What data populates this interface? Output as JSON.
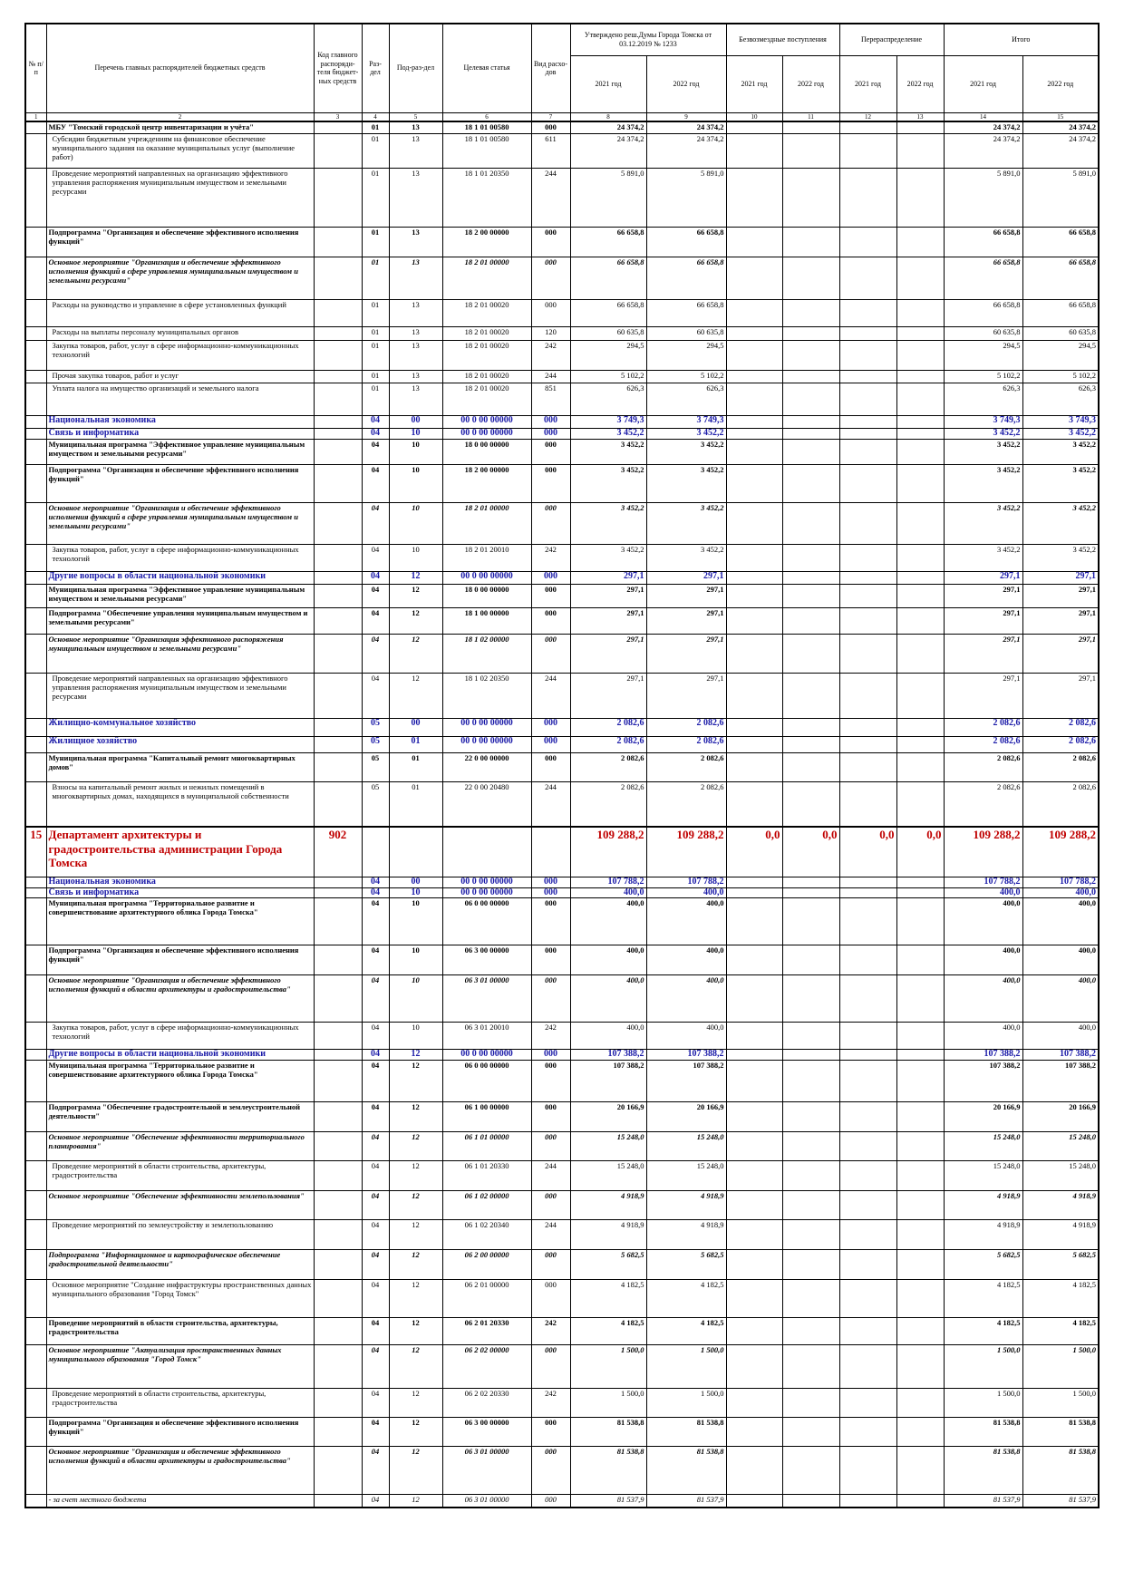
{
  "table": {
    "head": {
      "columns": [
        "№ п/п",
        "Перечень главных распорядителей бюджетных средств",
        "Код главного распоряди-теля бюджет-ных средств",
        "Раз-дел",
        "Под-раз-дел",
        "Целевая статья",
        "Вид расхо-дов"
      ],
      "groups": [
        "Утверждено реш.Думы Города Томска от 03.12.2019 № 1233",
        "Безвозмездные поступления",
        "Перераспределение",
        "Итого"
      ],
      "years": [
        "2021 год",
        "2022 год",
        "2021 год",
        "2022 год",
        "2021 год",
        "2022 год",
        "2021 год",
        "2022 год"
      ]
    },
    "numbers": [
      1,
      2,
      3,
      4,
      5,
      6,
      7,
      8,
      9,
      10,
      11,
      12,
      13,
      14,
      15
    ],
    "rows": [
      [
        null,
        "МБУ \"Томский городской центр инвентаризации и учёта\"",
        null,
        "01",
        "13",
        "18 1 01 00580",
        "000",
        "24 374,2",
        "24 374,2",
        null,
        null,
        null,
        null,
        "24 374,2",
        "24 374,2"
      ],
      [
        null,
        "Субсидии бюджетным учреждениям на финансовое обеспечение муниципального задания на оказание муниципальных услуг (выполнение работ)",
        null,
        "01",
        "13",
        "18 1 01 00580",
        "611",
        "24 374,2",
        "24 374,2",
        null,
        null,
        null,
        null,
        "24 374,2",
        "24 374,2"
      ],
      [
        null,
        "Проведение мероприятий направленных на организацию эффективного управления распоряжения муниципальным имуществом и земельными ресурсами",
        null,
        "01",
        "13",
        "18 1 01 20350",
        "244",
        "5 891,0",
        "5 891,0",
        null,
        null,
        null,
        null,
        "5 891,0",
        "5 891,0"
      ],
      [
        null,
        "Подпрограмма \"Организация и обеспечение эффективного исполнения функций\"",
        null,
        "01",
        "13",
        "18 2 00 00000",
        "000",
        "66 658,8",
        "66 658,8",
        null,
        null,
        null,
        null,
        "66 658,8",
        "66 658,8"
      ],
      [
        null,
        "Основное мероприятие \"Организация и обеспечение эффективного исполнения функций в сфере управления муниципальным имуществом и земельными ресурсами\"",
        null,
        "01",
        "13",
        "18 2 01 00000",
        "000",
        "66 658,8",
        "66 658,8",
        null,
        null,
        null,
        null,
        "66 658,8",
        "66 658,8"
      ],
      [
        null,
        "Расходы на руководство и управление в сфере установленных функций",
        null,
        "01",
        "13",
        "18 2 01 00020",
        "000",
        "66 658,8",
        "66 658,8",
        null,
        null,
        null,
        null,
        "66 658,8",
        "66 658,8"
      ],
      [
        null,
        "Расходы на выплаты персоналу муниципальных органов",
        null,
        "01",
        "13",
        "18 2 01 00020",
        "120",
        "60 635,8",
        "60 635,8",
        null,
        null,
        null,
        null,
        "60 635,8",
        "60 635,8"
      ],
      [
        null,
        "Закупка товаров, работ, услуг в сфере информационно-коммуникационных технологий",
        null,
        "01",
        "13",
        "18 2 01 00020",
        "242",
        "294,5",
        "294,5",
        null,
        null,
        null,
        null,
        "294,5",
        "294,5"
      ],
      [
        null,
        "Прочая закупка товаров, работ и услуг",
        null,
        "01",
        "13",
        "18 2 01 00020",
        "244",
        "5 102,2",
        "5 102,2",
        null,
        null,
        null,
        null,
        "5 102,2",
        "5 102,2"
      ],
      [
        null,
        "Уплата налога на имущество организаций и земельного налога",
        null,
        "01",
        "13",
        "18 2 01 00020",
        "851",
        "626,3",
        "626,3",
        null,
        null,
        null,
        null,
        "626,3",
        "626,3"
      ],
      [
        null,
        "Национальная экономика",
        null,
        "04",
        "00",
        "00 0 00 00000",
        "000",
        "3 749,3",
        "3 749,3",
        null,
        null,
        null,
        null,
        "3 749,3",
        "3 749,3"
      ],
      [
        null,
        "Связь и информатика",
        null,
        "04",
        "10",
        "00 0 00 00000",
        "000",
        "3 452,2",
        "3 452,2",
        null,
        null,
        null,
        null,
        "3 452,2",
        "3 452,2"
      ],
      [
        null,
        "Муниципальная программа \"Эффективное управление муниципальным имуществом и земельными ресурсами\"",
        null,
        "04",
        "10",
        "18 0 00 00000",
        "000",
        "3 452,2",
        "3 452,2",
        null,
        null,
        null,
        null,
        "3 452,2",
        "3 452,2"
      ],
      [
        null,
        "Подпрограмма \"Организация и обеспечение эффективного исполнения функций\"",
        null,
        "04",
        "10",
        "18 2 00 00000",
        "000",
        "3 452,2",
        "3 452,2",
        null,
        null,
        null,
        null,
        "3 452,2",
        "3 452,2"
      ],
      [
        null,
        "Основное мероприятие \"Организация и обеспечение эффективного исполнения функций в сфере управления муниципальным имуществом и земельными ресурсами\"",
        null,
        "04",
        "10",
        "18 2 01 00000",
        "000",
        "3 452,2",
        "3 452,2",
        null,
        null,
        null,
        null,
        "3 452,2",
        "3 452,2"
      ],
      [
        null,
        "Закупка товаров, работ, услуг в сфере информационно-коммуникационных технологий",
        null,
        "04",
        "10",
        "18 2 01 20010",
        "242",
        "3 452,2",
        "3 452,2",
        null,
        null,
        null,
        null,
        "3 452,2",
        "3 452,2"
      ],
      [
        null,
        "Другие вопросы в области национальной экономики",
        null,
        "04",
        "12",
        "00 0 00 00000",
        "000",
        "297,1",
        "297,1",
        null,
        null,
        null,
        null,
        "297,1",
        "297,1"
      ],
      [
        null,
        "Муниципальная программа \"Эффективное управление муниципальным имуществом и земельными ресурсами\"",
        null,
        "04",
        "12",
        "18 0 00 00000",
        "000",
        "297,1",
        "297,1",
        null,
        null,
        null,
        null,
        "297,1",
        "297,1"
      ],
      [
        null,
        "Подпрограмма \"Обеспечение управления муниципальным имуществом и земельными ресурсами\"",
        null,
        "04",
        "12",
        "18 1 00 00000",
        "000",
        "297,1",
        "297,1",
        null,
        null,
        null,
        null,
        "297,1",
        "297,1"
      ],
      [
        null,
        "Основное мероприятие \"Организация эффективного распоряжения муниципальным имуществом и земельными ресурсами\"",
        null,
        "04",
        "12",
        "18 1 02 00000",
        "000",
        "297,1",
        "297,1",
        null,
        null,
        null,
        null,
        "297,1",
        "297,1"
      ],
      [
        null,
        "Проведение мероприятий направленных на организацию эффективного управления распоряжения муниципальным имуществом и земельными ресурсами",
        null,
        "04",
        "12",
        "18 1 02 20350",
        "244",
        "297,1",
        "297,1",
        null,
        null,
        null,
        null,
        "297,1",
        "297,1"
      ],
      [
        null,
        "Жилищно-коммунальное хозяйство",
        null,
        "05",
        "00",
        "00 0 00 00000",
        "000",
        "2 082,6",
        "2 082,6",
        null,
        null,
        null,
        null,
        "2 082,6",
        "2 082,6"
      ],
      [
        null,
        "Жилищное хозяйство",
        null,
        "05",
        "01",
        "00 0 00 00000",
        "000",
        "2 082,6",
        "2 082,6",
        null,
        null,
        null,
        null,
        "2 082,6",
        "2 082,6"
      ],
      [
        null,
        "Муниципальная программа \"Капитальный ремонт многоквартирных домов\"",
        null,
        "05",
        "01",
        "22 0 00 00000",
        "000",
        "2 082,6",
        "2 082,6",
        null,
        null,
        null,
        null,
        "2 082,6",
        "2 082,6"
      ],
      [
        null,
        "Взносы на капитальный ремонт жилых и нежилых помещений в многоквартирных домах, находящихся в муниципальной собственности",
        null,
        "05",
        "01",
        "22 0 00 20480",
        "244",
        "2 082,6",
        "2 082,6",
        null,
        null,
        null,
        null,
        "2 082,6",
        "2 082,6"
      ],
      [
        "15",
        "Департамент архитектуры и градостроительства администрации Города Томска",
        "902",
        null,
        null,
        null,
        null,
        "109 288,2",
        "109 288,2",
        "0,0",
        "0,0",
        "0,0",
        "0,0",
        "109 288,2",
        "109 288,2"
      ],
      [
        null,
        "Национальная экономика",
        null,
        "04",
        "00",
        "00 0 00 00000",
        "000",
        "107 788,2",
        "107 788,2",
        null,
        null,
        null,
        null,
        "107 788,2",
        "107 788,2"
      ],
      [
        null,
        "Связь и информатика",
        null,
        "04",
        "10",
        "00 0 00 00000",
        "000",
        "400,0",
        "400,0",
        null,
        null,
        null,
        null,
        "400,0",
        "400,0"
      ],
      [
        null,
        "Муниципальная программа \"Территориальное развитие и совершенствование архитектурного облика Города Томска\"",
        null,
        "04",
        "10",
        "06 0 00 00000",
        "000",
        "400,0",
        "400,0",
        null,
        null,
        null,
        null,
        "400,0",
        "400,0"
      ],
      [
        null,
        "Подпрограмма \"Организация и обеспечение эффективного исполнения функций\"",
        null,
        "04",
        "10",
        "06 3 00 00000",
        "000",
        "400,0",
        "400,0",
        null,
        null,
        null,
        null,
        "400,0",
        "400,0"
      ],
      [
        null,
        "Основное мероприятие \"Организация и обеспечение эффективного исполнения функций в области архитектуры и градостроительства\"",
        null,
        "04",
        "10",
        "06 3 01 00000",
        "000",
        "400,0",
        "400,0",
        null,
        null,
        null,
        null,
        "400,0",
        "400,0"
      ],
      [
        null,
        "Закупка товаров, работ, услуг в сфере информационно-коммуникационных технологий",
        null,
        "04",
        "10",
        "06 3 01 20010",
        "242",
        "400,0",
        "400,0",
        null,
        null,
        null,
        null,
        "400,0",
        "400,0"
      ],
      [
        null,
        "Другие вопросы в области национальной экономики",
        null,
        "04",
        "12",
        "00 0 00 00000",
        "000",
        "107 388,2",
        "107 388,2",
        null,
        null,
        null,
        null,
        "107 388,2",
        "107 388,2"
      ],
      [
        null,
        "Муниципальная программа \"Территориальное развитие и совершенствование архитектурного облика Города Томска\"",
        null,
        "04",
        "12",
        "06 0 00 00000",
        "000",
        "107 388,2",
        "107 388,2",
        null,
        null,
        null,
        null,
        "107 388,2",
        "107 388,2"
      ],
      [
        null,
        "Подпрограмма \"Обеспечение градостроительной и землеустроительной деятельности\"",
        null,
        "04",
        "12",
        "06 1 00 00000",
        "000",
        "20 166,9",
        "20 166,9",
        null,
        null,
        null,
        null,
        "20 166,9",
        "20 166,9"
      ],
      [
        null,
        "Основное мероприятие \"Обеспечение эффективности территориального планирования\"",
        null,
        "04",
        "12",
        "06 1 01 00000",
        "000",
        "15 248,0",
        "15 248,0",
        null,
        null,
        null,
        null,
        "15 248,0",
        "15 248,0"
      ],
      [
        null,
        "Проведение мероприятий в области строительства, архитектуры, градостроительства",
        null,
        "04",
        "12",
        "06 1 01 20330",
        "244",
        "15 248,0",
        "15 248,0",
        null,
        null,
        null,
        null,
        "15 248,0",
        "15 248,0"
      ],
      [
        null,
        "Основное мероприятие \"Обеспечение эффективности землепользования\"",
        null,
        "04",
        "12",
        "06 1 02 00000",
        "000",
        "4 918,9",
        "4 918,9",
        null,
        null,
        null,
        null,
        "4 918,9",
        "4 918,9"
      ],
      [
        null,
        "Проведение мероприятий по землеустройству и землепользованию",
        null,
        "04",
        "12",
        "06 1 02 20340",
        "244",
        "4 918,9",
        "4 918,9",
        null,
        null,
        null,
        null,
        "4 918,9",
        "4 918,9"
      ],
      [
        null,
        "Подпрограмма \"Информационное и картографическое обеспечение градостроительной деятельности\"",
        null,
        "04",
        "12",
        "06 2 00 00000",
        "000",
        "5 682,5",
        "5 682,5",
        null,
        null,
        null,
        null,
        "5 682,5",
        "5 682,5"
      ],
      [
        null,
        "Основное мероприятие \"Создание инфраструктуры пространственных данных муниципального образования \"Город Томск\"",
        null,
        "04",
        "12",
        "06 2 01 00000",
        "000",
        "4 182,5",
        "4 182,5",
        null,
        null,
        null,
        null,
        "4 182,5",
        "4 182,5"
      ],
      [
        null,
        "Проведение мероприятий в области строительства, архитектуры, градостроительства",
        null,
        "04",
        "12",
        "06 2 01 20330",
        "242",
        "4 182,5",
        "4 182,5",
        null,
        null,
        null,
        null,
        "4 182,5",
        "4 182,5"
      ],
      [
        null,
        "Основное мероприятие \"Актуализация пространственных данных муниципального образования \"Город Томск\"",
        null,
        "04",
        "12",
        "06 2 02 00000",
        "000",
        "1 500,0",
        "1 500,0",
        null,
        null,
        null,
        null,
        "1 500,0",
        "1 500,0"
      ],
      [
        null,
        "Проведение мероприятий в области строительства, архитектуры, градостроительства",
        null,
        "04",
        "12",
        "06 2 02 20330",
        "242",
        "1 500,0",
        "1 500,0",
        null,
        null,
        null,
        null,
        "1 500,0",
        "1 500,0"
      ],
      [
        null,
        "Подпрограмма \"Организация и обеспечение эффективного исполнения функций\"",
        null,
        "04",
        "12",
        "06 3 00 00000",
        "000",
        "81 538,8",
        "81 538,8",
        null,
        null,
        null,
        null,
        "81 538,8",
        "81 538,8"
      ],
      [
        null,
        "Основное мероприятие \"Организация и обеспечение эффективного исполнения функций в области архитектуры и градостроительства\"",
        null,
        "04",
        "12",
        "06 3 01 00000",
        "000",
        "81 538,8",
        "81 538,8",
        null,
        null,
        null,
        null,
        "81 538,8",
        "81 538,8"
      ],
      [
        null,
        "- за счет местного бюджета",
        null,
        "04",
        "12",
        "06 3 01 00000",
        "000",
        "81 537,9",
        "81 537,9",
        null,
        null,
        null,
        null,
        "81 537,9",
        "81 537,9"
      ]
    ]
  }
}
